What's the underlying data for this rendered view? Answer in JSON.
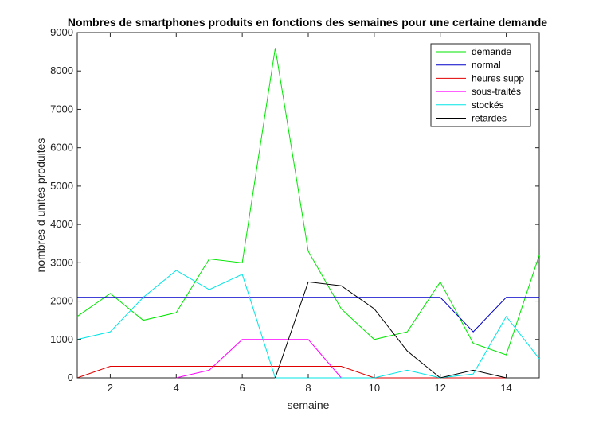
{
  "chart_data": {
    "type": "line",
    "title": "Nombres de smartphones produits en fonctions des semaines pour une certaine demande",
    "xlabel": "semaine",
    "ylabel": "nombres d unités produites",
    "xlim": [
      1,
      15
    ],
    "ylim": [
      0,
      9000
    ],
    "xticks": [
      2,
      4,
      6,
      8,
      10,
      12,
      14
    ],
    "yticks": [
      0,
      1000,
      2000,
      3000,
      4000,
      5000,
      6000,
      7000,
      8000,
      9000
    ],
    "grid": false,
    "legend_position": "top-right",
    "x": [
      1,
      2,
      3,
      4,
      5,
      6,
      7,
      8,
      9,
      10,
      11,
      12,
      13,
      14,
      15
    ],
    "series": [
      {
        "name": "demande",
        "color": "#00e600",
        "values": [
          1600,
          2200,
          1500,
          1700,
          3100,
          3000,
          8600,
          3300,
          1800,
          1000,
          1200,
          2500,
          900,
          600,
          3200
        ]
      },
      {
        "name": "normal",
        "color": "#0000c8",
        "values": [
          2100,
          2100,
          2100,
          2100,
          2100,
          2100,
          2100,
          2100,
          2100,
          2100,
          2100,
          2100,
          1200,
          2100,
          2100
        ]
      },
      {
        "name": "heures supp",
        "color": "#e00000",
        "values": [
          0,
          300,
          300,
          300,
          300,
          300,
          300,
          300,
          300,
          0,
          0,
          0,
          0,
          0,
          null
        ]
      },
      {
        "name": "sous-traités",
        "color": "#ff00ff",
        "values": [
          null,
          null,
          null,
          0,
          200,
          1000,
          1000,
          1000,
          0,
          null,
          null,
          null,
          null,
          null,
          null
        ]
      },
      {
        "name": "stockés",
        "color": "#00e5e5",
        "values": [
          1000,
          1200,
          2100,
          2800,
          2300,
          2700,
          0,
          0,
          0,
          0,
          200,
          0,
          100,
          1600,
          500
        ]
      },
      {
        "name": "retardés",
        "color": "#000000",
        "values": [
          null,
          null,
          null,
          null,
          null,
          null,
          0,
          2500,
          2400,
          1800,
          700,
          0,
          200,
          0,
          null
        ]
      }
    ]
  }
}
